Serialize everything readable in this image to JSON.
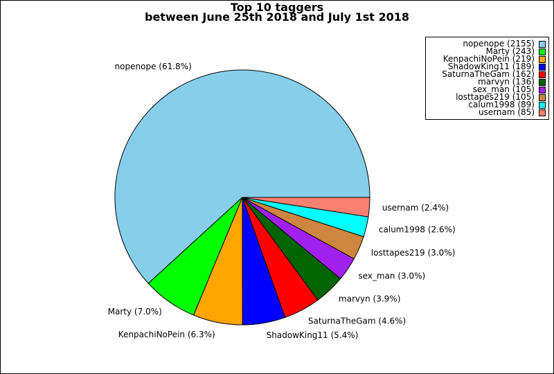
{
  "chart_data": {
    "type": "pie",
    "title": "Top 10 taggers",
    "subtitle": "between June 25th 2018 and July 1st 2018",
    "slices": [
      {
        "name": "nopenope",
        "count": 2155,
        "percent": "61.8%",
        "color": "#87ceeb"
      },
      {
        "name": "Marty",
        "count": 243,
        "percent": "7.0%",
        "color": "#00ff00"
      },
      {
        "name": "KenpachiNoPein",
        "count": 219,
        "percent": "6.3%",
        "color": "#ffa500"
      },
      {
        "name": "ShadowKing11",
        "count": 189,
        "percent": "5.4%",
        "color": "#0000ff"
      },
      {
        "name": "SaturnaTheGam",
        "count": 162,
        "percent": "4.6%",
        "color": "#ff0000"
      },
      {
        "name": "marvyn",
        "count": 136,
        "percent": "3.9%",
        "color": "#006400"
      },
      {
        "name": "sex_man",
        "count": 105,
        "percent": "3.0%",
        "color": "#a020f0"
      },
      {
        "name": "losttapes219",
        "count": 105,
        "percent": "3.0%",
        "color": "#cd853f"
      },
      {
        "name": "calum1998",
        "count": 89,
        "percent": "2.6%",
        "color": "#00ffff"
      },
      {
        "name": "usernam",
        "count": 85,
        "percent": "2.4%",
        "color": "#fa8072"
      }
    ],
    "legend_position": "top-right",
    "start_angle": "0 degrees (3 o'clock), counter-clockwise"
  }
}
